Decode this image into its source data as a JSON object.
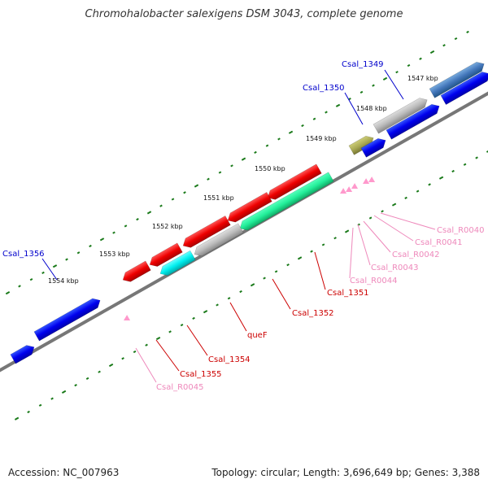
{
  "title": "Chromohalobacter salexigens DSM 3043, complete genome",
  "accession": "Accession: NC_007963",
  "summary": "Topology: circular; Length: 3,696,649 bp; Genes: 3,388",
  "colors": {
    "backbone": "#888888",
    "cds_forward": "#0000ee",
    "cds_reverse": "#ee0000",
    "rna": "#ff99cc",
    "tick": "#1a7a1a"
  },
  "scale_labels": [
    "1547 kbp",
    "1548 kbp",
    "1549 kbp",
    "1550 kbp",
    "1551 kbp",
    "1552 kbp",
    "1553 kbp",
    "1554 kbp"
  ],
  "gene_labels": [
    {
      "name": "Csal_1349",
      "color": "#0000cc"
    },
    {
      "name": "Csal_1350",
      "color": "#0000cc"
    },
    {
      "name": "Csal_1356",
      "color": "#0000cc"
    },
    {
      "name": "Csal_1351",
      "color": "#cc0000"
    },
    {
      "name": "Csal_1352",
      "color": "#cc0000"
    },
    {
      "name": "queF",
      "color": "#cc0000"
    },
    {
      "name": "Csal_1354",
      "color": "#cc0000"
    },
    {
      "name": "Csal_1355",
      "color": "#cc0000"
    },
    {
      "name": "Csal_R0040",
      "color": "#ee88bb"
    },
    {
      "name": "Csal_R0041",
      "color": "#ee88bb"
    },
    {
      "name": "Csal_R0042",
      "color": "#ee88bb"
    },
    {
      "name": "Csal_R0043",
      "color": "#ee88bb"
    },
    {
      "name": "Csal_R0044",
      "color": "#ee88bb"
    },
    {
      "name": "Csal_R0045",
      "color": "#ee88bb"
    }
  ]
}
